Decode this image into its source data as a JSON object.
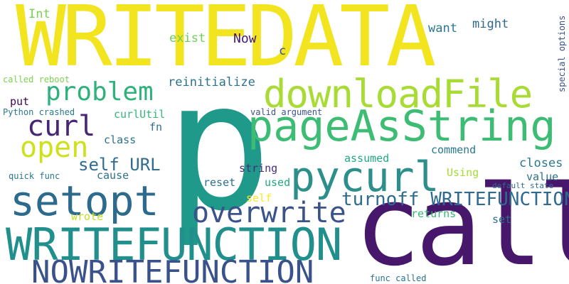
{
  "words": {
    "writedata": {
      "text": "WRITEDATA",
      "color": "#f2e41e"
    },
    "p": {
      "text": "p",
      "color": "#1f9a8a"
    },
    "call": {
      "text": "call",
      "color": "#46176b"
    },
    "writefunction": {
      "text": "WRITEFUNCTION",
      "color": "#21908d"
    },
    "pageasstring": {
      "text": "pageAsString",
      "color": "#3dbc74"
    },
    "downloadfile": {
      "text": "downloadFile",
      "color": "#a8db34"
    },
    "pycurl": {
      "text": "pycurl",
      "color": "#2d8f8c"
    },
    "setopt": {
      "text": "setopt",
      "color": "#2c6a8e"
    },
    "nowritefunction": {
      "text": "NOWRITEFUNCTION",
      "color": "#3a528b"
    },
    "overwrite": {
      "text": "overwrite",
      "color": "#3a538b"
    },
    "problem": {
      "text": "problem",
      "color": "#2eb27c"
    },
    "curl": {
      "text": "curl",
      "color": "#482575"
    },
    "open": {
      "text": "open",
      "color": "#cde11d"
    },
    "turnoff_wf": {
      "text": "turnoff WRITEFUNCTION",
      "color": "#2f6b8e"
    },
    "self_url": {
      "text": "self URL",
      "color": "#2f6c8e"
    },
    "reinitialize": {
      "text": "reinitialize",
      "color": "#2c718e"
    },
    "exist": {
      "text": "exist",
      "color": "#6ece58"
    },
    "now": {
      "text": "Now",
      "color": "#46176b"
    },
    "want": {
      "text": "want",
      "color": "#2a788e"
    },
    "might": {
      "text": "might",
      "color": "#31688e"
    },
    "int": {
      "text": "Int",
      "color": "#7ad151"
    },
    "c": {
      "text": "c",
      "color": "#3b528b"
    },
    "called_reboot": {
      "text": "called reboot",
      "color": "#7ad151"
    },
    "put": {
      "text": "put",
      "color": "#440154"
    },
    "python_crashed": {
      "text": "Python crashed",
      "color": "#2a788e"
    },
    "curlutil": {
      "text": "curlUtil",
      "color": "#35b779"
    },
    "valid_argument": {
      "text": "valid argument",
      "color": "#3b528b"
    },
    "fn": {
      "text": "fn",
      "color": "#2c718e"
    },
    "class": {
      "text": "class",
      "color": "#2c718e"
    },
    "commend": {
      "text": "commend",
      "color": "#2a788e"
    },
    "assumed": {
      "text": "assumed",
      "color": "#22a884"
    },
    "closes": {
      "text": "closes",
      "color": "#2a788e"
    },
    "string": {
      "text": "string",
      "color": "#472d7b"
    },
    "cause": {
      "text": "cause",
      "color": "#2c718e"
    },
    "quick_func": {
      "text": "quick func",
      "color": "#2a788e"
    },
    "using": {
      "text": "Using",
      "color": "#a5db36"
    },
    "value": {
      "text": "value",
      "color": "#2c718e"
    },
    "reset": {
      "text": "reset",
      "color": "#2c718e"
    },
    "used": {
      "text": "used",
      "color": "#22a884"
    },
    "default_state": {
      "text": "default state",
      "color": "#31688e"
    },
    "self": {
      "text": "self",
      "color": "#fde725"
    },
    "wrote": {
      "text": "wrote",
      "color": "#c2df23"
    },
    "returns": {
      "text": "returns",
      "color": "#35b779"
    },
    "set": {
      "text": "set",
      "color": "#2c718e"
    },
    "special_options": {
      "text": "special options",
      "color": "#3b528b"
    },
    "func_called": {
      "text": "func called",
      "color": "#2c718e"
    }
  }
}
